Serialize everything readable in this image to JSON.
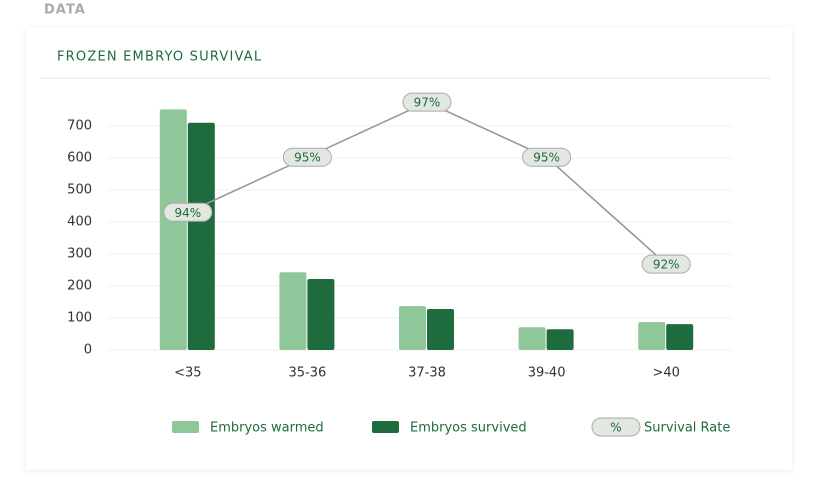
{
  "section_label": "DATA",
  "chart_data": {
    "type": "bar",
    "title": "FROZEN EMBRYO SURVIVAL",
    "categories": [
      "<35",
      "35-36",
      "37-38",
      "39-40",
      ">40"
    ],
    "series": [
      {
        "name": "Embryos warmed",
        "color": "#8fc79a",
        "values": [
          752,
          243,
          137,
          71,
          87
        ]
      },
      {
        "name": "Embryos survived",
        "color": "#1e6b3e",
        "values": [
          710,
          222,
          128,
          65,
          81
        ]
      },
      {
        "name": "Survival Rate",
        "type": "line",
        "axis": "y2",
        "color": "#999999",
        "legend_symbol": "%",
        "values": [
          93.6,
          95.3,
          97.0,
          95.3,
          92.0
        ],
        "value_labels": [
          "94%",
          "95%",
          "97%",
          "95%",
          "92%"
        ]
      }
    ],
    "ylim": [
      0,
      800
    ],
    "yticks": [
      0,
      100,
      200,
      300,
      400,
      500,
      600,
      700
    ],
    "y2lim": [
      89.35,
      97.25
    ],
    "grid": true,
    "legend": "bottom"
  }
}
